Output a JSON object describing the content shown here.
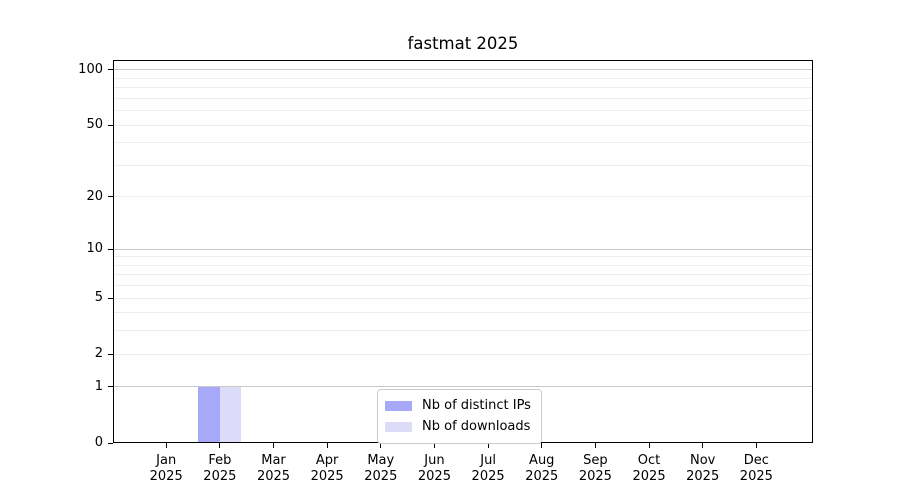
{
  "chart_data": {
    "type": "bar",
    "title": "fastmat 2025",
    "categories": [
      {
        "month": "Jan",
        "year": "2025"
      },
      {
        "month": "Feb",
        "year": "2025"
      },
      {
        "month": "Mar",
        "year": "2025"
      },
      {
        "month": "Apr",
        "year": "2025"
      },
      {
        "month": "May",
        "year": "2025"
      },
      {
        "month": "Jun",
        "year": "2025"
      },
      {
        "month": "Jul",
        "year": "2025"
      },
      {
        "month": "Aug",
        "year": "2025"
      },
      {
        "month": "Sep",
        "year": "2025"
      },
      {
        "month": "Oct",
        "year": "2025"
      },
      {
        "month": "Nov",
        "year": "2025"
      },
      {
        "month": "Dec",
        "year": "2025"
      }
    ],
    "series": [
      {
        "name": "Nb of distinct IPs",
        "color": "#a8a8f8",
        "values": [
          0,
          1,
          0,
          0,
          0,
          0,
          0,
          0,
          0,
          0,
          0,
          0
        ]
      },
      {
        "name": "Nb of downloads",
        "color": "#dcdcf8",
        "values": [
          0,
          1,
          0,
          0,
          0,
          0,
          0,
          0,
          0,
          0,
          0,
          0
        ]
      }
    ],
    "y_axis": {
      "scale": "log1p",
      "tick_values": [
        0,
        1,
        2,
        5,
        10,
        20,
        50,
        100
      ],
      "grid_major": [
        1,
        10,
        100
      ],
      "grid_minor": [
        2,
        3,
        4,
        5,
        6,
        7,
        8,
        9,
        20,
        30,
        40,
        50,
        60,
        70,
        80,
        90
      ],
      "ylim": [
        0,
        113
      ]
    },
    "legend_position": "lower center",
    "colors": {
      "grid_major": "#c9c9c9",
      "grid_minor": "#ededed",
      "axis": "#000000"
    }
  }
}
